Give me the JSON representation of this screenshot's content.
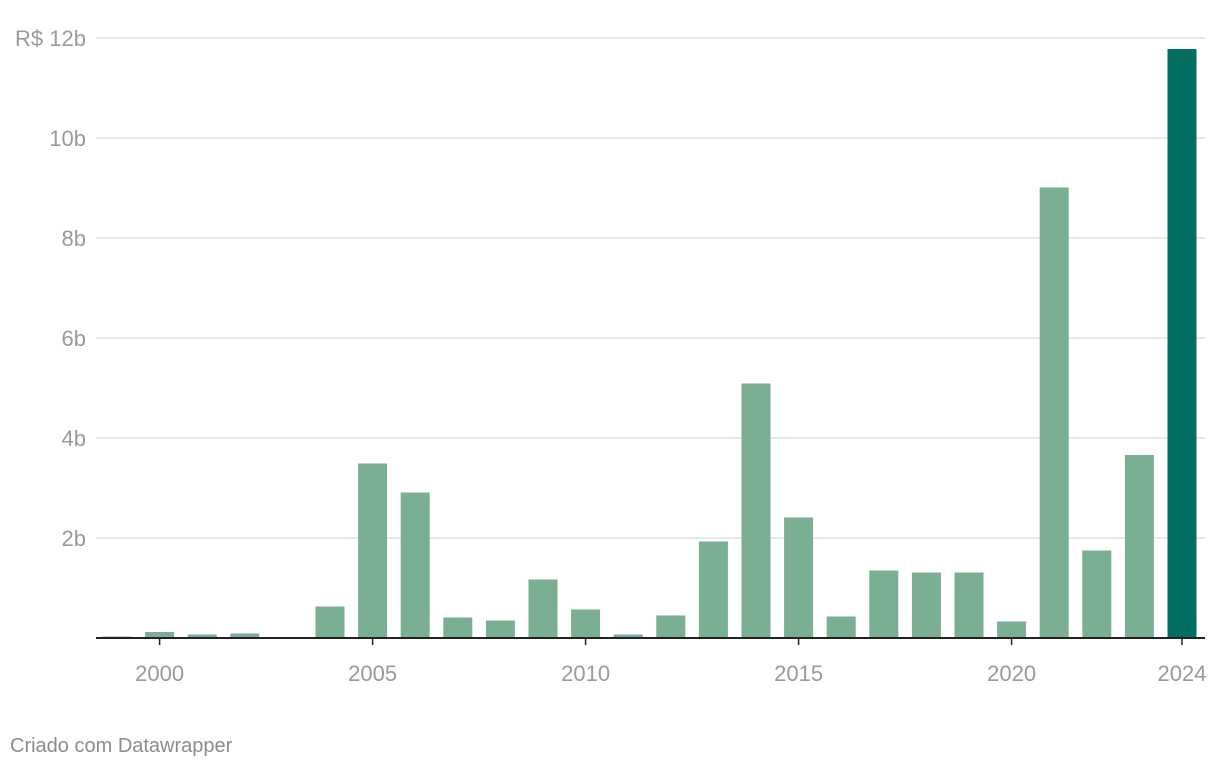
{
  "chart_data": {
    "type": "bar",
    "title": "",
    "xlabel": "",
    "ylabel": "",
    "ylim": [
      0,
      12
    ],
    "yunit_note": "billions of R$",
    "y_ticks": [
      {
        "value": 2,
        "label": "2b"
      },
      {
        "value": 4,
        "label": "4b"
      },
      {
        "value": 6,
        "label": "6b"
      },
      {
        "value": 8,
        "label": "8b"
      },
      {
        "value": 10,
        "label": "10b"
      },
      {
        "value": 12,
        "label": "R$ 12b"
      }
    ],
    "x_ticks": [
      {
        "value": 2000,
        "label": "2000"
      },
      {
        "value": 2005,
        "label": "2005"
      },
      {
        "value": 2010,
        "label": "2010"
      },
      {
        "value": 2015,
        "label": "2015"
      },
      {
        "value": 2020,
        "label": "2020"
      },
      {
        "value": 2024,
        "label": "2024"
      }
    ],
    "x": [
      1999,
      2000,
      2001,
      2002,
      2003,
      2004,
      2005,
      2006,
      2007,
      2008,
      2009,
      2010,
      2011,
      2012,
      2013,
      2014,
      2015,
      2016,
      2017,
      2018,
      2019,
      2020,
      2021,
      2022,
      2023,
      2024
    ],
    "values": [
      0.03,
      0.12,
      0.07,
      0.09,
      0,
      0.63,
      3.49,
      2.91,
      0.41,
      0.35,
      1.17,
      0.57,
      0.07,
      0.45,
      1.93,
      5.09,
      2.41,
      0.43,
      1.35,
      1.31,
      1.31,
      0.33,
      9.01,
      1.75,
      3.66,
      11.78
    ],
    "highlight": [
      2024
    ],
    "colors": {
      "bar": "#7aaf93",
      "highlight": "#036e62",
      "grid": "#e2e2e2",
      "axis": "#222222",
      "tick_text": "#9a9a9a"
    },
    "grid": true,
    "legend": "none"
  },
  "footer": {
    "credit": "Criado com Datawrapper"
  }
}
